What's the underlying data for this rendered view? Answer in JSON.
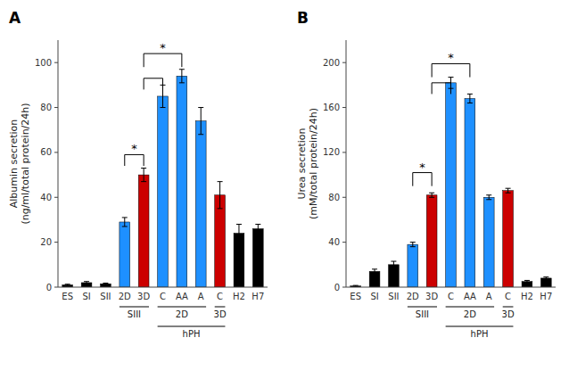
{
  "chart_data": [
    {
      "type": "bar",
      "title": "A",
      "ylabel": "Albumin secretion\n(ng/ml/total protein/24h)",
      "ylim": [
        0,
        110
      ],
      "yticks": [
        0,
        20,
        40,
        60,
        80,
        100
      ],
      "grid": false,
      "categories": [
        "ES",
        "SI",
        "SII",
        "2D",
        "3D",
        "C",
        "AA",
        "A",
        "C",
        "H2",
        "H7"
      ],
      "values": [
        1.0,
        2.0,
        1.5,
        29,
        50,
        85,
        94,
        74,
        41,
        24,
        26
      ],
      "errors": [
        0.3,
        0.5,
        0.3,
        2,
        3,
        5,
        3,
        6,
        6,
        4,
        2
      ],
      "colors": [
        "#000000",
        "#000000",
        "#000000",
        "#1e90ff",
        "#cc0000",
        "#1e90ff",
        "#1e90ff",
        "#1e90ff",
        "#cc0000",
        "#000000",
        "#000000"
      ],
      "annotations": [
        {
          "type": "bracket",
          "x1": 3,
          "x2": 4,
          "y": 54,
          "dy": 5,
          "label": "*"
        },
        {
          "type": "bracket",
          "x1": 4,
          "x2": 6,
          "y": 98,
          "dy": 6,
          "label": "*"
        },
        {
          "type": "bracket",
          "x1": 4,
          "x2": 5,
          "y": 88,
          "dy": 5
        }
      ],
      "groups": [
        {
          "label": "SIII",
          "start": 3,
          "end": 4
        },
        {
          "label": "hPH",
          "start": 5,
          "end": 8,
          "groups": [
            {
              "label": "2D",
              "start": 5,
              "end": 7
            },
            {
              "label": "3D",
              "start": 8,
              "end": 8
            }
          ]
        }
      ]
    },
    {
      "type": "bar",
      "title": "B",
      "ylabel": "Urea secretion\n(mM/total protein/24h)",
      "ylim": [
        0,
        220
      ],
      "yticks": [
        0,
        40,
        80,
        120,
        160,
        200
      ],
      "grid": false,
      "categories": [
        "ES",
        "SI",
        "SII",
        "2D",
        "3D",
        "C",
        "AA",
        "A",
        "C",
        "H2",
        "H7"
      ],
      "values": [
        1.0,
        14,
        20,
        38,
        82,
        182,
        168,
        80,
        86,
        5,
        8
      ],
      "errors": [
        0.5,
        2,
        3,
        2,
        2,
        5,
        4,
        2,
        2,
        1,
        1
      ],
      "colors": [
        "#000000",
        "#000000",
        "#000000",
        "#1e90ff",
        "#cc0000",
        "#1e90ff",
        "#1e90ff",
        "#1e90ff",
        "#cc0000",
        "#000000",
        "#000000"
      ],
      "annotations": [
        {
          "type": "bracket",
          "x1": 3,
          "x2": 4,
          "y": 90,
          "dy": 12,
          "label": "*"
        },
        {
          "type": "bracket",
          "x1": 4,
          "x2": 6,
          "y": 187,
          "dy": 12,
          "label": "*"
        },
        {
          "type": "bracket",
          "x1": 4,
          "x2": 5,
          "y": 172,
          "dy": 10
        }
      ],
      "groups": [
        {
          "label": "SIII",
          "start": 3,
          "end": 4
        },
        {
          "label": "hPH",
          "start": 5,
          "end": 8,
          "groups": [
            {
              "label": "2D",
              "start": 5,
              "end": 7
            },
            {
              "label": "3D",
              "start": 8,
              "end": 8
            }
          ]
        }
      ]
    }
  ]
}
